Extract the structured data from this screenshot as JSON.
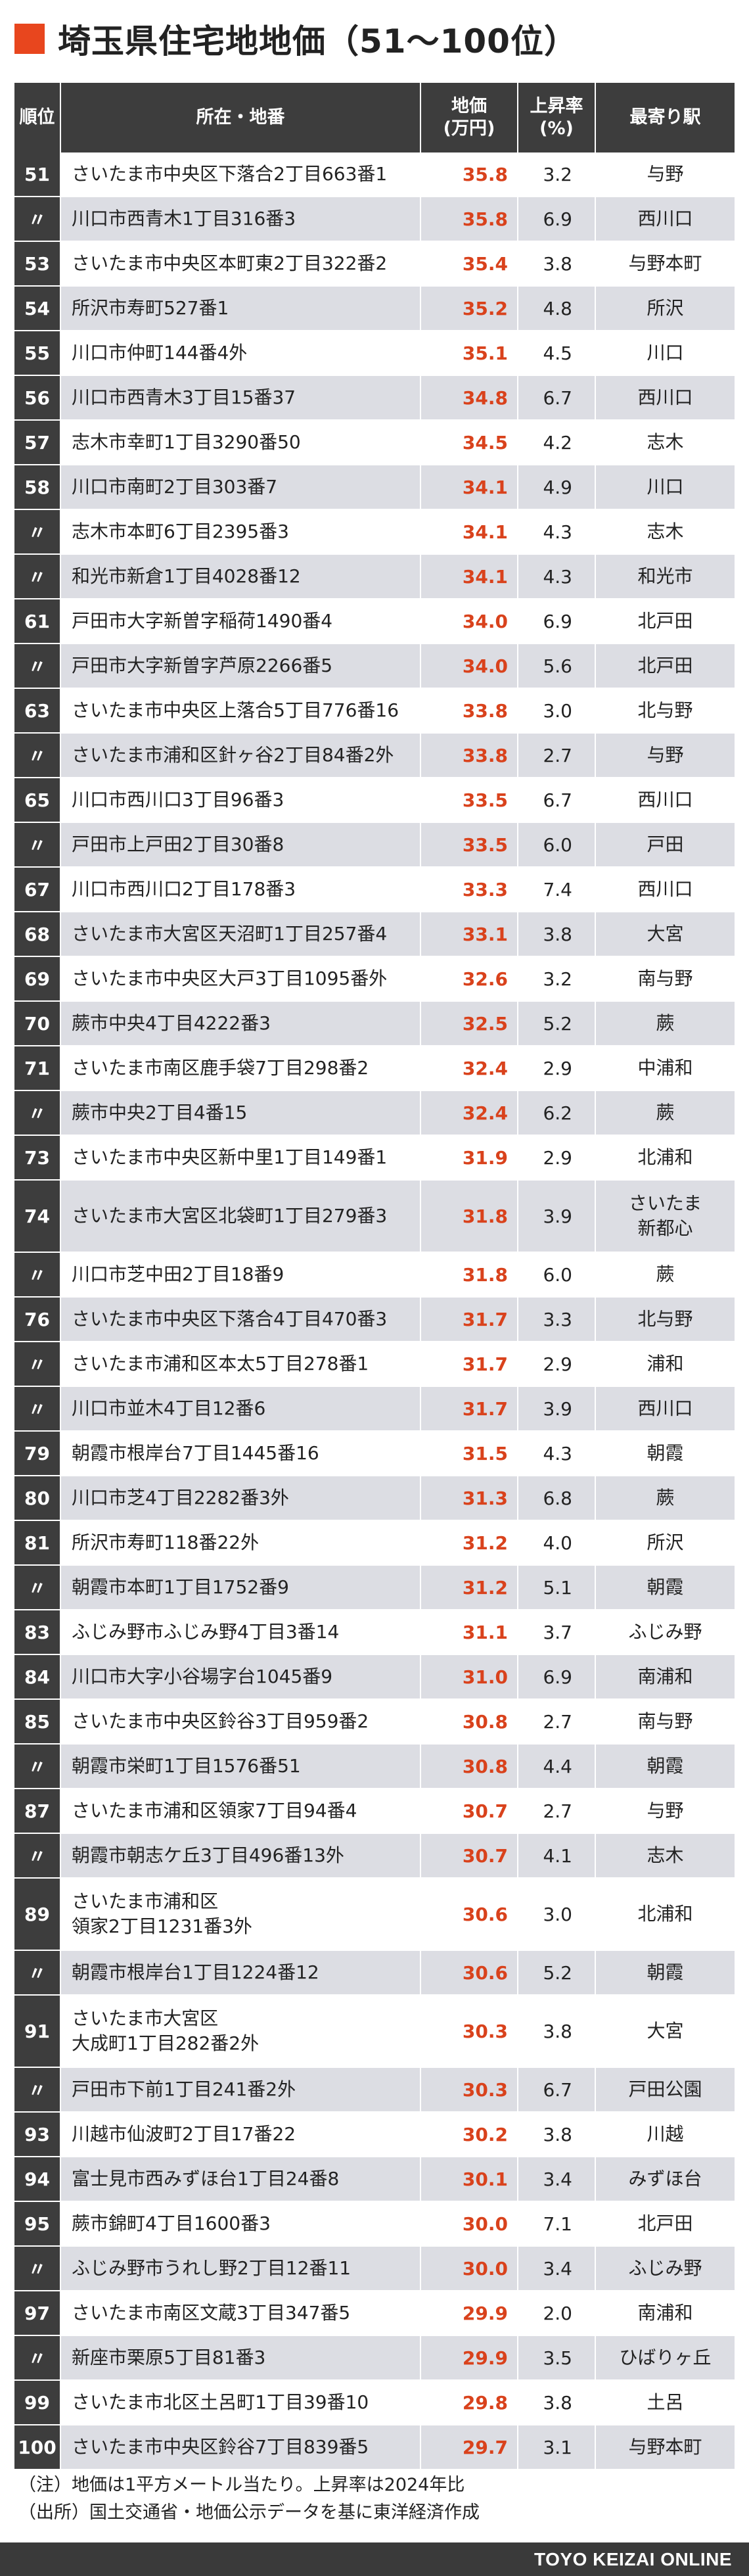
{
  "title": "埼玉県住宅地地価（51〜100位）",
  "columns": {
    "rank": "順位",
    "address": "所在・地番",
    "price_l1": "地価",
    "price_l2": "(万円)",
    "rate_l1": "上昇率",
    "rate_l2": "(%)",
    "station": "最寄り駅"
  },
  "rows": [
    {
      "rank": "51",
      "address": "さいたま市中央区下落合2丁目663番1",
      "price": "35.8",
      "rate": "3.2",
      "station": "与野"
    },
    {
      "rank": "〃",
      "address": "川口市西青木1丁目316番3",
      "price": "35.8",
      "rate": "6.9",
      "station": "西川口"
    },
    {
      "rank": "53",
      "address": "さいたま市中央区本町東2丁目322番2",
      "price": "35.4",
      "rate": "3.8",
      "station": "与野本町"
    },
    {
      "rank": "54",
      "address": "所沢市寿町527番1",
      "price": "35.2",
      "rate": "4.8",
      "station": "所沢"
    },
    {
      "rank": "55",
      "address": "川口市仲町144番4外",
      "price": "35.1",
      "rate": "4.5",
      "station": "川口"
    },
    {
      "rank": "56",
      "address": "川口市西青木3丁目15番37",
      "price": "34.8",
      "rate": "6.7",
      "station": "西川口"
    },
    {
      "rank": "57",
      "address": "志木市幸町1丁目3290番50",
      "price": "34.5",
      "rate": "4.2",
      "station": "志木"
    },
    {
      "rank": "58",
      "address": "川口市南町2丁目303番7",
      "price": "34.1",
      "rate": "4.9",
      "station": "川口"
    },
    {
      "rank": "〃",
      "address": "志木市本町6丁目2395番3",
      "price": "34.1",
      "rate": "4.3",
      "station": "志木"
    },
    {
      "rank": "〃",
      "address": "和光市新倉1丁目4028番12",
      "price": "34.1",
      "rate": "4.3",
      "station": "和光市"
    },
    {
      "rank": "61",
      "address": "戸田市大字新曽字稲荷1490番4",
      "price": "34.0",
      "rate": "6.9",
      "station": "北戸田"
    },
    {
      "rank": "〃",
      "address": "戸田市大字新曽字芦原2266番5",
      "price": "34.0",
      "rate": "5.6",
      "station": "北戸田"
    },
    {
      "rank": "63",
      "address": "さいたま市中央区上落合5丁目776番16",
      "price": "33.8",
      "rate": "3.0",
      "station": "北与野"
    },
    {
      "rank": "〃",
      "address": "さいたま市浦和区針ヶ谷2丁目84番2外",
      "price": "33.8",
      "rate": "2.7",
      "station": "与野"
    },
    {
      "rank": "65",
      "address": "川口市西川口3丁目96番3",
      "price": "33.5",
      "rate": "6.7",
      "station": "西川口"
    },
    {
      "rank": "〃",
      "address": "戸田市上戸田2丁目30番8",
      "price": "33.5",
      "rate": "6.0",
      "station": "戸田"
    },
    {
      "rank": "67",
      "address": "川口市西川口2丁目178番3",
      "price": "33.3",
      "rate": "7.4",
      "station": "西川口"
    },
    {
      "rank": "68",
      "address": "さいたま市大宮区天沼町1丁目257番4",
      "price": "33.1",
      "rate": "3.8",
      "station": "大宮"
    },
    {
      "rank": "69",
      "address": "さいたま市中央区大戸3丁目1095番外",
      "price": "32.6",
      "rate": "3.2",
      "station": "南与野"
    },
    {
      "rank": "70",
      "address": "蕨市中央4丁目4222番3",
      "price": "32.5",
      "rate": "5.2",
      "station": "蕨"
    },
    {
      "rank": "71",
      "address": "さいたま市南区鹿手袋7丁目298番2",
      "price": "32.4",
      "rate": "2.9",
      "station": "中浦和"
    },
    {
      "rank": "〃",
      "address": "蕨市中央2丁目4番15",
      "price": "32.4",
      "rate": "6.2",
      "station": "蕨"
    },
    {
      "rank": "73",
      "address": "さいたま市中央区新中里1丁目149番1",
      "price": "31.9",
      "rate": "2.9",
      "station": "北浦和"
    },
    {
      "rank": "74",
      "address": "さいたま市大宮区北袋町1丁目279番3",
      "price": "31.8",
      "rate": "3.9",
      "station": "さいたま\n新都心",
      "tall": true
    },
    {
      "rank": "〃",
      "address": "川口市芝中田2丁目18番9",
      "price": "31.8",
      "rate": "6.0",
      "station": "蕨"
    },
    {
      "rank": "76",
      "address": "さいたま市中央区下落合4丁目470番3",
      "price": "31.7",
      "rate": "3.3",
      "station": "北与野"
    },
    {
      "rank": "〃",
      "address": "さいたま市浦和区本太5丁目278番1",
      "price": "31.7",
      "rate": "2.9",
      "station": "浦和"
    },
    {
      "rank": "〃",
      "address": "川口市並木4丁目12番6",
      "price": "31.7",
      "rate": "3.9",
      "station": "西川口"
    },
    {
      "rank": "79",
      "address": "朝霞市根岸台7丁目1445番16",
      "price": "31.5",
      "rate": "4.3",
      "station": "朝霞"
    },
    {
      "rank": "80",
      "address": "川口市芝4丁目2282番3外",
      "price": "31.3",
      "rate": "6.8",
      "station": "蕨"
    },
    {
      "rank": "81",
      "address": "所沢市寿町118番22外",
      "price": "31.2",
      "rate": "4.0",
      "station": "所沢"
    },
    {
      "rank": "〃",
      "address": "朝霞市本町1丁目1752番9",
      "price": "31.2",
      "rate": "5.1",
      "station": "朝霞"
    },
    {
      "rank": "83",
      "address": "ふじみ野市ふじみ野4丁目3番14",
      "price": "31.1",
      "rate": "3.7",
      "station": "ふじみ野"
    },
    {
      "rank": "84",
      "address": "川口市大字小谷場字台1045番9",
      "price": "31.0",
      "rate": "6.9",
      "station": "南浦和"
    },
    {
      "rank": "85",
      "address": "さいたま市中央区鈴谷3丁目959番2",
      "price": "30.8",
      "rate": "2.7",
      "station": "南与野"
    },
    {
      "rank": "〃",
      "address": "朝霞市栄町1丁目1576番51",
      "price": "30.8",
      "rate": "4.4",
      "station": "朝霞"
    },
    {
      "rank": "87",
      "address": "さいたま市浦和区領家7丁目94番4",
      "price": "30.7",
      "rate": "2.7",
      "station": "与野"
    },
    {
      "rank": "〃",
      "address": "朝霞市朝志ケ丘3丁目496番13外",
      "price": "30.7",
      "rate": "4.1",
      "station": "志木"
    },
    {
      "rank": "89",
      "address": "さいたま市浦和区\n領家2丁目1231番3外",
      "price": "30.6",
      "rate": "3.0",
      "station": "北浦和",
      "tall": true
    },
    {
      "rank": "〃",
      "address": "朝霞市根岸台1丁目1224番12",
      "price": "30.6",
      "rate": "5.2",
      "station": "朝霞"
    },
    {
      "rank": "91",
      "address": "さいたま市大宮区\n大成町1丁目282番2外",
      "price": "30.3",
      "rate": "3.8",
      "station": "大宮",
      "tall": true
    },
    {
      "rank": "〃",
      "address": "戸田市下前1丁目241番2外",
      "price": "30.3",
      "rate": "6.7",
      "station": "戸田公園"
    },
    {
      "rank": "93",
      "address": "川越市仙波町2丁目17番22",
      "price": "30.2",
      "rate": "3.8",
      "station": "川越"
    },
    {
      "rank": "94",
      "address": "富士見市西みずほ台1丁目24番8",
      "price": "30.1",
      "rate": "3.4",
      "station": "みずほ台"
    },
    {
      "rank": "95",
      "address": "蕨市錦町4丁目1600番3",
      "price": "30.0",
      "rate": "7.1",
      "station": "北戸田"
    },
    {
      "rank": "〃",
      "address": "ふじみ野市うれし野2丁目12番11",
      "price": "30.0",
      "rate": "3.4",
      "station": "ふじみ野"
    },
    {
      "rank": "97",
      "address": "さいたま市南区文蔵3丁目347番5",
      "price": "29.9",
      "rate": "2.0",
      "station": "南浦和"
    },
    {
      "rank": "〃",
      "address": "新座市栗原5丁目81番3",
      "price": "29.9",
      "rate": "3.5",
      "station": "ひばりヶ丘"
    },
    {
      "rank": "99",
      "address": "さいたま市北区土呂町1丁目39番10",
      "price": "29.8",
      "rate": "3.8",
      "station": "土呂"
    },
    {
      "rank": "100",
      "address": "さいたま市中央区鈴谷7丁目839番5",
      "price": "29.7",
      "rate": "3.1",
      "station": "与野本町"
    }
  ],
  "notes": {
    "note": "（注）地価は1平方メートル当たり。上昇率は2024年比",
    "source": "（出所）国土交通省・地価公示データを基に東洋経済作成"
  },
  "footer": {
    "brand": "TOYO KEIZAI ONLINE"
  },
  "colors": {
    "header_bg": "#3d3d3d",
    "stripe": "#dcdde3",
    "price_text": "#d9421c",
    "title_mark": "#e8461e"
  }
}
